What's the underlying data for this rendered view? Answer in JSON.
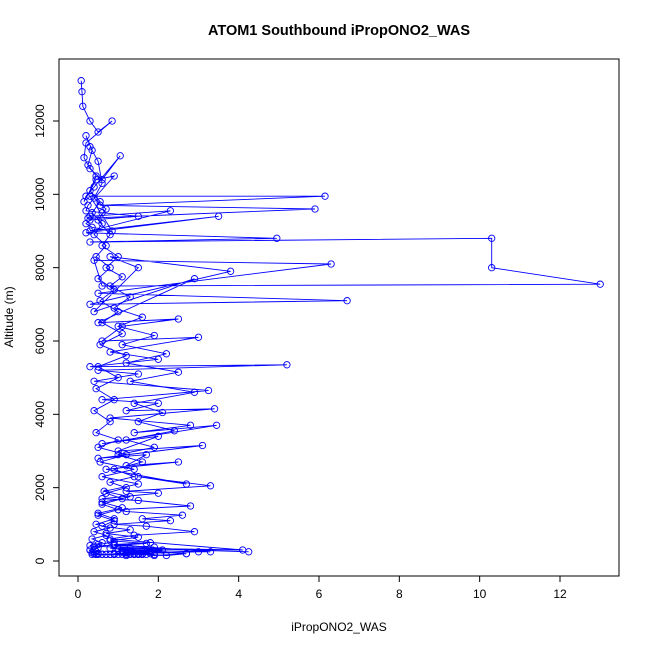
{
  "chart_data": {
    "type": "scatter",
    "title": "ATOM1 Southbound iPropONO2_WAS",
    "xlabel": "iPropONO2_WAS",
    "ylabel": "Altitude (m)",
    "xlim": [
      0,
      13
    ],
    "ylim": [
      0,
      13100
    ],
    "xticks": [
      0,
      2,
      4,
      6,
      8,
      10,
      12
    ],
    "yticks": [
      0,
      2000,
      4000,
      6000,
      8000,
      10000,
      12000
    ],
    "x_tick_labels": [
      "0",
      "2",
      "4",
      "6",
      "8",
      "10",
      "12"
    ],
    "y_tick_labels": [
      "0",
      "2000",
      "4000",
      "6000",
      "8000",
      "10000",
      "12000"
    ],
    "grid": false,
    "connected": true,
    "color": "#0000ff",
    "marker": "open-circle",
    "series": [
      {
        "x": [
          0.08,
          0.1,
          0.12,
          0.3,
          0.5,
          0.85,
          0.2,
          0.15,
          0.3,
          0.6,
          1.05,
          0.4,
          0.2,
          0.15,
          0.45,
          0.9,
          0.25,
          0.2,
          0.6,
          1.5,
          0.3,
          0.2,
          0.35,
          0.85,
          0.3,
          6.15,
          0.55,
          5.9,
          0.25,
          0.3,
          2.3,
          0.3,
          3.5,
          0.2,
          4.95,
          0.3,
          10.3,
          10.3,
          13.0,
          0.6,
          0.4,
          6.3,
          0.5,
          6.7,
          0.3,
          3.8,
          0.8,
          1.5,
          0.4,
          2.9,
          0.5,
          2.5,
          1.1,
          0.6,
          3.0,
          0.8,
          2.0,
          0.3,
          5.2,
          0.5,
          1.5,
          0.4,
          3.25,
          0.6,
          2.0,
          1.2,
          3.4,
          0.8,
          2.8,
          1.4,
          3.45,
          0.6,
          2.0,
          1.0,
          3.1,
          0.5,
          1.7,
          1.2,
          2.5,
          0.7,
          2.7,
          1.5,
          3.3,
          1.2,
          2.0,
          0.6,
          1.5,
          2.8,
          1.0,
          1.2,
          2.6,
          1.6,
          2.3,
          0.9,
          1.7,
          2.9,
          1.4,
          0.8,
          4.1,
          1.3,
          4.25,
          0.4,
          1.8,
          0.9,
          3.3,
          1.0,
          2.7,
          0.8,
          1.6,
          0.9,
          3.0,
          1.4,
          2.2,
          2.7,
          1.9,
          1.1,
          1.9,
          1.5,
          1.2,
          0.9,
          1.8,
          1.3,
          0.7,
          0.35,
          0.3,
          0.5,
          0.9
        ],
        "y": [
          13100,
          12800,
          12400,
          12000,
          11700,
          12000,
          11400,
          11000,
          10700,
          10400,
          11050,
          10200,
          9950,
          9800,
          10400,
          10500,
          9700,
          9550,
          9500,
          9400,
          9300,
          9200,
          9100,
          9000,
          9950,
          9950,
          9700,
          9600,
          9350,
          9400,
          9550,
          9000,
          9400,
          8950,
          8800,
          8700,
          8800,
          8000,
          7550,
          7500,
          8200,
          8100,
          7300,
          7100,
          7000,
          7900,
          8300,
          8000,
          6800,
          7700,
          6500,
          6600,
          6400,
          6000,
          6100,
          5700,
          5500,
          5300,
          5350,
          5200,
          5100,
          4900,
          4650,
          4400,
          4300,
          4100,
          4150,
          3900,
          3700,
          3500,
          3700,
          3200,
          3400,
          3000,
          3150,
          2800,
          2900,
          2600,
          2700,
          2500,
          2100,
          2300,
          2050,
          1900,
          1850,
          1700,
          1650,
          1500,
          1400,
          1350,
          1250,
          1150,
          1100,
          1000,
          950,
          800,
          700,
          600,
          300,
          350,
          250,
          400,
          500,
          450,
          250,
          300,
          200,
          350,
          250,
          200,
          250,
          200,
          150,
          200,
          150,
          250,
          180,
          200,
          150,
          180,
          200,
          190,
          180,
          180,
          300,
          450,
          520
        ]
      },
      {
        "x": [
          0.3,
          0.5,
          0.6,
          0.4,
          0.7,
          0.5,
          0.8,
          0.6,
          1.0,
          0.7,
          1.1,
          0.8,
          1.3,
          0.9,
          1.6,
          1.0,
          1.9,
          1.1,
          2.2,
          1.2,
          2.5,
          1.3,
          2.9,
          1.4,
          2.1,
          1.5,
          2.4,
          1.2,
          1.9,
          1.0,
          1.6,
          0.9,
          1.4,
          0.8,
          1.2,
          0.7,
          1.1,
          0.6,
          1.0,
          0.5,
          0.9,
          0.6,
          1.3,
          0.7,
          1.5,
          0.8,
          1.7,
          0.9,
          1.9,
          1.0,
          2.1,
          1.1,
          1.8,
          1.2,
          1.6,
          1.3,
          1.5,
          1.4,
          1.6,
          1.5,
          1.7,
          1.6,
          1.5,
          1.4,
          1.3,
          1.2,
          1.1,
          1.0,
          0.9,
          0.8
        ],
        "y": [
          11300,
          10900,
          10300,
          9900,
          9600,
          9300,
          8900,
          8600,
          8300,
          8000,
          7750,
          7500,
          7200,
          6900,
          6650,
          6400,
          6150,
          5900,
          5650,
          5400,
          5150,
          4900,
          4600,
          4300,
          4050,
          3800,
          3550,
          3300,
          3100,
          2900,
          2700,
          2500,
          2300,
          2150,
          2000,
          1850,
          1700,
          1550,
          1400,
          1250,
          1100,
          950,
          850,
          750,
          650,
          550,
          480,
          420,
          380,
          340,
          300,
          270,
          240,
          220,
          200,
          190,
          185,
          180,
          180,
          180,
          180,
          180,
          180,
          180,
          180,
          180,
          180,
          180,
          180,
          180
        ]
      },
      {
        "x": [
          0.2,
          0.35,
          0.25,
          0.45,
          0.3,
          0.55,
          0.35,
          0.6,
          0.4,
          0.7,
          0.45,
          0.8,
          0.5,
          0.9,
          0.55,
          1.0,
          0.6,
          1.1,
          0.55,
          1.2,
          0.5,
          1.0,
          0.45,
          0.9,
          0.4,
          0.8,
          0.45,
          1.0,
          0.5,
          1.2,
          0.55,
          1.4,
          0.6,
          1.5,
          0.65,
          1.3,
          0.6,
          1.1,
          0.5,
          0.9,
          0.45,
          0.8,
          0.4,
          0.7,
          0.35,
          0.6,
          0.3,
          0.5,
          0.3,
          0.45,
          0.35,
          0.5,
          0.4,
          0.6,
          0.45,
          0.7,
          0.5,
          0.8,
          0.45,
          0.6
        ],
        "y": [
          11600,
          11200,
          10800,
          10500,
          10100,
          9800,
          9500,
          9200,
          8900,
          8600,
          8300,
          8000,
          7700,
          7400,
          7100,
          6800,
          6500,
          6200,
          5900,
          5600,
          5300,
          5000,
          4700,
          4400,
          4100,
          3800,
          3500,
          3300,
          3100,
          2900,
          2700,
          2500,
          2300,
          2100,
          1900,
          1750,
          1600,
          1450,
          1300,
          1150,
          1000,
          900,
          800,
          700,
          600,
          500,
          420,
          360,
          300,
          260,
          230,
          210,
          195,
          185,
          180,
          180,
          180,
          180,
          180,
          180
        ]
      }
    ]
  }
}
